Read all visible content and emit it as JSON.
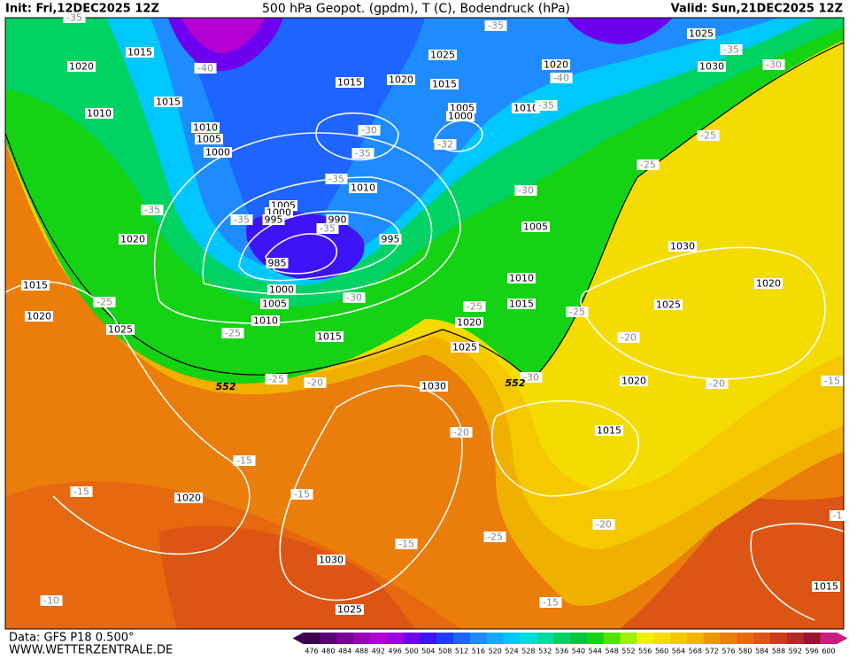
{
  "header": {
    "init": "Init: Fri,12DEC2025 12Z",
    "title": "500 hPa Geopot. (gpdm), T (C), Bodendruck (hPa)",
    "valid": "Valid: Sun,21DEC2025 12Z"
  },
  "footer": {
    "source": "Data: GFS P18 0.500°",
    "site": "WWW.WETTERZENTRALE.DE"
  },
  "legend": {
    "levels": [
      476,
      480,
      484,
      488,
      492,
      496,
      500,
      504,
      508,
      512,
      516,
      520,
      524,
      528,
      532,
      536,
      540,
      544,
      548,
      552,
      556,
      560,
      564,
      568,
      572,
      576,
      580,
      584,
      588,
      592,
      596,
      600
    ],
    "colors": [
      "#3c0050",
      "#5a0078",
      "#7a0096",
      "#9a00b4",
      "#b400d2",
      "#a000e6",
      "#6e00f0",
      "#3c14f5",
      "#1e3cff",
      "#1e64ff",
      "#1e8cff",
      "#14aaff",
      "#00c8ff",
      "#00dcdc",
      "#00dca0",
      "#00d264",
      "#00c83c",
      "#14d214",
      "#50e600",
      "#a0f000",
      "#f0f000",
      "#f5dc00",
      "#f5c800",
      "#f5b400",
      "#f09600",
      "#eb7d0a",
      "#e6690f",
      "#dc5514",
      "#cd3c1e",
      "#b42828",
      "#9a1432",
      "#c81e82"
    ]
  },
  "map": {
    "isobar_labels": [
      "1015",
      "1020",
      "1025",
      "1020",
      "1015",
      "1015",
      "1020",
      "1025",
      "1030",
      "1010",
      "1015",
      "1010",
      "1005",
      "1000",
      "1005",
      "1000",
      "1010",
      "1010",
      "1005",
      "1000",
      "995",
      "990",
      "995",
      "985",
      "1000",
      "1005",
      "1010",
      "1005",
      "1010",
      "1015",
      "1020",
      "1025",
      "1030",
      "1015",
      "1025",
      "1020",
      "1015",
      "1020",
      "1030",
      "1025",
      "1020",
      "1020",
      "1015",
      "1020",
      "1030",
      "1025",
      "1015"
    ],
    "temperature_labels": [
      "-35",
      "-40",
      "-35",
      "-40",
      "-35",
      "-30",
      "-35",
      "-30",
      "-35",
      "-35",
      "-32",
      "-30",
      "-35",
      "-35",
      "-35",
      "-25",
      "-25",
      "-30",
      "-25",
      "-25",
      "-25",
      "-25",
      "-25",
      "-20",
      "-30",
      "-20",
      "-20",
      "-15",
      "-20",
      "-15",
      "-15",
      "-15",
      "-15",
      "-25",
      "-20",
      "-10",
      "-15",
      "-1"
    ],
    "geopotential_labels": [
      "552",
      "552"
    ]
  }
}
